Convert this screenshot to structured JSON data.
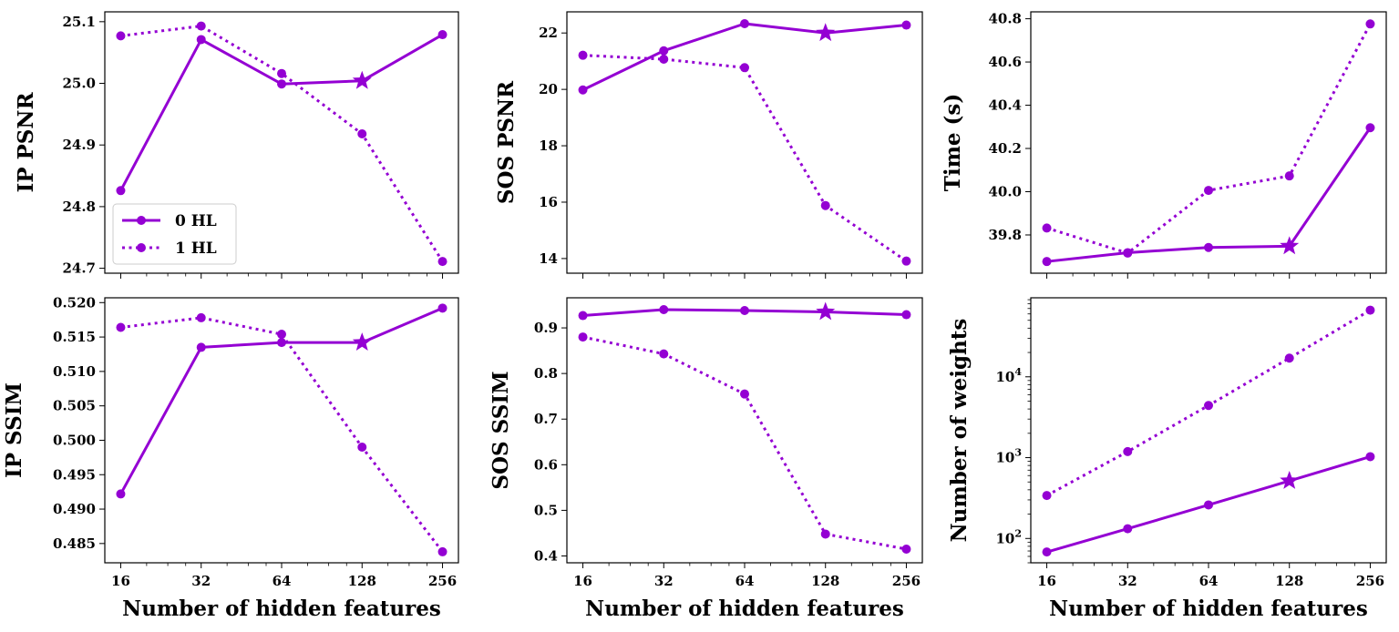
{
  "chart_data": [
    {
      "type": "line",
      "scale": "linear",
      "x": [
        16,
        32,
        64,
        128,
        256
      ],
      "ylabel": "IP PSNR",
      "yticks": [
        24.7,
        24.8,
        24.9,
        25.0,
        25.1
      ],
      "ytick_labels": [
        "24.7",
        "24.8",
        "24.9",
        "25.0",
        "25.1"
      ],
      "ylim": [
        24.692,
        25.116
      ],
      "series": [
        {
          "name": "0 HL",
          "values": [
            24.826,
            25.071,
            24.999,
            25.004,
            25.079
          ],
          "marker_star_index": 3
        },
        {
          "name": "1 HL",
          "values": [
            25.077,
            25.093,
            25.016,
            24.918,
            24.711
          ]
        }
      ],
      "legend": "lower-left"
    },
    {
      "type": "line",
      "scale": "linear",
      "x": [
        16,
        32,
        64,
        128,
        256
      ],
      "ylabel": "SOS PSNR",
      "yticks": [
        14,
        16,
        18,
        20,
        22
      ],
      "ytick_labels": [
        "14",
        "16",
        "18",
        "20",
        "22"
      ],
      "ylim": [
        13.48,
        22.75
      ],
      "series": [
        {
          "name": "0 HL",
          "values": [
            19.98,
            21.37,
            22.33,
            22.0,
            22.28
          ],
          "marker_star_index": 3
        },
        {
          "name": "1 HL",
          "values": [
            21.21,
            21.07,
            20.77,
            15.88,
            13.91
          ]
        }
      ]
    },
    {
      "type": "line",
      "scale": "linear",
      "x": [
        16,
        32,
        64,
        128,
        256
      ],
      "ylabel": "Time (s)",
      "yticks": [
        39.8,
        40.0,
        40.2,
        40.4,
        40.6,
        40.8
      ],
      "ytick_labels": [
        "39.8",
        "40.0",
        "40.2",
        "40.4",
        "40.6",
        "40.8"
      ],
      "ylim": [
        39.623,
        40.832
      ],
      "series": [
        {
          "name": "0 HL",
          "values": [
            39.677,
            39.718,
            39.742,
            39.748,
            40.296
          ],
          "marker_star_index": 3
        },
        {
          "name": "1 HL",
          "values": [
            39.832,
            39.716,
            40.006,
            40.073,
            40.776
          ]
        }
      ]
    },
    {
      "type": "line",
      "scale": "linear",
      "x": [
        16,
        32,
        64,
        128,
        256
      ],
      "xlabel": "Number of hidden features",
      "ylabel": "IP SSIM",
      "yticks": [
        0.485,
        0.49,
        0.495,
        0.5,
        0.505,
        0.51,
        0.515,
        0.52
      ],
      "ytick_labels": [
        "0.485",
        "0.490",
        "0.495",
        "0.500",
        "0.505",
        "0.510",
        "0.515",
        "0.520"
      ],
      "ylim": [
        0.4822,
        0.5207
      ],
      "series": [
        {
          "name": "0 HL",
          "values": [
            0.4922,
            0.5135,
            0.5142,
            0.5142,
            0.5192
          ],
          "marker_star_index": 3
        },
        {
          "name": "1 HL",
          "values": [
            0.5164,
            0.5178,
            0.5154,
            0.499,
            0.4838
          ]
        }
      ]
    },
    {
      "type": "line",
      "scale": "linear",
      "x": [
        16,
        32,
        64,
        128,
        256
      ],
      "xlabel": "Number of hidden features",
      "ylabel": "SOS SSIM",
      "yticks": [
        0.4,
        0.5,
        0.6,
        0.7,
        0.8,
        0.9
      ],
      "ytick_labels": [
        "0.4",
        "0.5",
        "0.6",
        "0.7",
        "0.8",
        "0.9"
      ],
      "ylim": [
        0.385,
        0.966
      ],
      "series": [
        {
          "name": "0 HL",
          "values": [
            0.927,
            0.94,
            0.938,
            0.935,
            0.929
          ],
          "marker_star_index": 3
        },
        {
          "name": "1 HL",
          "values": [
            0.88,
            0.843,
            0.755,
            0.448,
            0.415
          ]
        }
      ]
    },
    {
      "type": "line",
      "scale": "log",
      "x": [
        16,
        32,
        64,
        128,
        256
      ],
      "xlabel": "Number of hidden features",
      "ylabel": "Number of weights",
      "yticks": [
        100,
        1000,
        10000
      ],
      "ytick_labels": [
        [
          "10",
          "2"
        ],
        [
          "10",
          "3"
        ],
        [
          "10",
          "4"
        ]
      ],
      "ylim": [
        50,
        95000
      ],
      "series": [
        {
          "name": "0 HL",
          "values": [
            68,
            132,
            260,
            516,
            1028
          ],
          "marker_star_index": 3
        },
        {
          "name": "1 HL",
          "values": [
            340,
            1188,
            4420,
            17028,
            66820
          ]
        }
      ]
    }
  ],
  "xticks": [
    16,
    32,
    64,
    128,
    256
  ],
  "xtick_labels": [
    "16",
    "32",
    "64",
    "128",
    "256"
  ],
  "colors": {
    "series": "#9400d3",
    "axes": "#000000"
  }
}
